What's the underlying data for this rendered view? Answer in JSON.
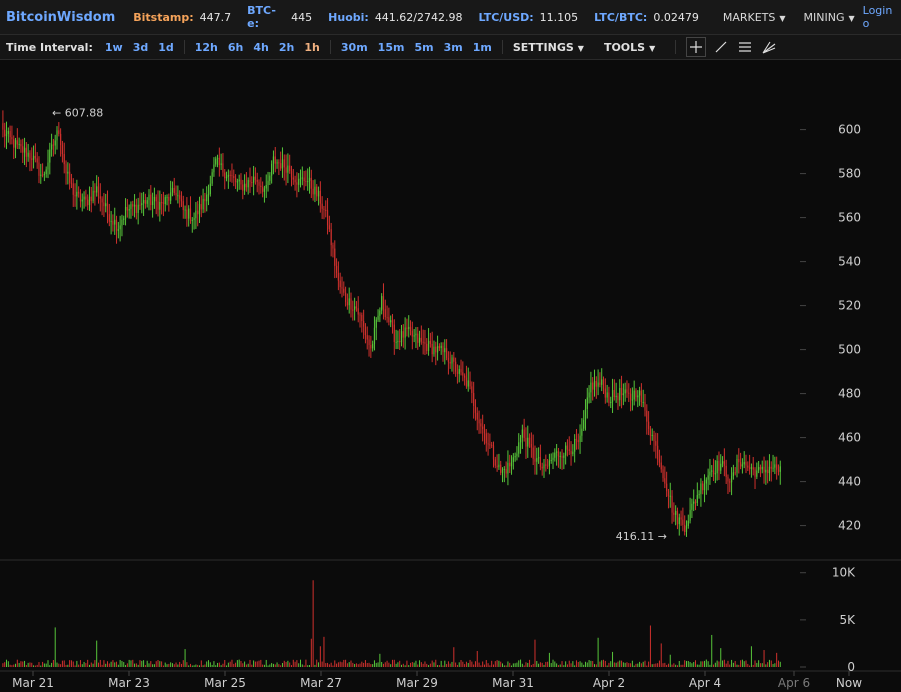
{
  "header": {
    "brand": "BitcoinWisdom",
    "tickers": [
      {
        "label": "Bitstamp:",
        "value": "447.7",
        "color": "#f5a35a"
      },
      {
        "label": "BTC-e:",
        "value": "445",
        "color": "#6ea8ff"
      },
      {
        "label": "Huobi:",
        "value": "441.62/2742.98",
        "color": "#6ea8ff"
      },
      {
        "label": "LTC/USD:",
        "value": "11.105",
        "color": "#6ea8ff"
      },
      {
        "label": "LTC/BTC:",
        "value": "0.02479",
        "color": "#6ea8ff"
      }
    ],
    "menus": [
      "MARKETS",
      "MINING"
    ],
    "login": "Login o"
  },
  "toolbar": {
    "time_interval_label": "Time Interval:",
    "interval_groups": [
      [
        "1w",
        "3d",
        "1d"
      ],
      [
        "12h",
        "6h",
        "4h",
        "2h",
        "1h"
      ],
      [
        "30m",
        "15m",
        "5m",
        "3m",
        "1m"
      ]
    ],
    "active_interval": "1h",
    "settings_label": "SETTINGS",
    "tools_label": "TOOLS",
    "tool_icons": [
      "crosshair-icon",
      "line-tool-icon",
      "horizontal-lines-icon",
      "fan-tool-icon"
    ]
  },
  "chart_data": {
    "type": "candlestick",
    "title": "",
    "up_color": "#57c53a",
    "down_color": "#d0312d",
    "price_axis": {
      "ticks": [
        420,
        440,
        460,
        480,
        500,
        520,
        540,
        560,
        580,
        600
      ],
      "range": [
        408,
        628
      ]
    },
    "volume_axis": {
      "tick_labels": [
        "10K",
        "5K",
        "0"
      ],
      "ticks": [
        10000,
        5000,
        0
      ],
      "range": [
        0,
        10500
      ]
    },
    "x_labels": [
      "Mar 21",
      "Mar 23",
      "Mar 25",
      "Mar 27",
      "Mar 29",
      "Mar 31",
      "Apr 2",
      "Apr 4",
      "Apr 6",
      "Now"
    ],
    "annotations": {
      "high": "← 607.88",
      "high_value": 607.88,
      "low": "416.11 →",
      "low_value": 416.11
    },
    "anchors": [
      [
        0,
        599
      ],
      [
        8,
        592
      ],
      [
        16,
        588
      ],
      [
        22,
        578
      ],
      [
        27,
        591
      ],
      [
        31,
        600
      ],
      [
        35,
        580
      ],
      [
        40,
        570
      ],
      [
        46,
        567
      ],
      [
        52,
        573
      ],
      [
        58,
        562
      ],
      [
        64,
        556
      ],
      [
        68,
        563
      ],
      [
        74,
        565
      ],
      [
        80,
        568
      ],
      [
        88,
        566
      ],
      [
        96,
        572
      ],
      [
        100,
        563
      ],
      [
        106,
        560
      ],
      [
        112,
        568
      ],
      [
        118,
        585
      ],
      [
        124,
        580
      ],
      [
        132,
        574
      ],
      [
        140,
        578
      ],
      [
        146,
        572
      ],
      [
        150,
        586
      ],
      [
        158,
        583
      ],
      [
        164,
        576
      ],
      [
        168,
        578
      ],
      [
        176,
        568
      ],
      [
        180,
        558
      ],
      [
        186,
        530
      ],
      [
        190,
        523
      ],
      [
        196,
        519
      ],
      [
        200,
        510
      ],
      [
        204,
        500
      ],
      [
        210,
        522
      ],
      [
        218,
        504
      ],
      [
        224,
        508
      ],
      [
        232,
        503
      ],
      [
        240,
        500
      ],
      [
        246,
        498
      ],
      [
        252,
        490
      ],
      [
        258,
        484
      ],
      [
        264,
        468
      ],
      [
        272,
        452
      ],
      [
        276,
        444
      ],
      [
        282,
        448
      ],
      [
        288,
        462
      ],
      [
        294,
        452
      ],
      [
        300,
        445
      ],
      [
        306,
        452
      ],
      [
        314,
        455
      ],
      [
        320,
        458
      ],
      [
        326,
        484
      ],
      [
        332,
        484
      ],
      [
        336,
        478
      ],
      [
        342,
        480
      ],
      [
        348,
        478
      ],
      [
        352,
        482
      ],
      [
        358,
        466
      ],
      [
        364,
        450
      ],
      [
        368,
        438
      ],
      [
        372,
        425
      ],
      [
        378,
        420
      ],
      [
        382,
        428
      ],
      [
        386,
        436
      ],
      [
        392,
        445
      ],
      [
        398,
        448
      ],
      [
        404,
        440
      ],
      [
        408,
        450
      ],
      [
        414,
        446
      ],
      [
        420,
        444
      ],
      [
        426,
        447
      ],
      [
        430,
        445
      ]
    ],
    "volume_spikes": [
      [
        29,
        4200
      ],
      [
        52,
        2800
      ],
      [
        101,
        1900
      ],
      [
        171,
        3000
      ],
      [
        172,
        9200
      ],
      [
        176,
        2200
      ],
      [
        178,
        3200
      ],
      [
        209,
        1400
      ],
      [
        250,
        2100
      ],
      [
        263,
        1700
      ],
      [
        295,
        2900
      ],
      [
        303,
        1500
      ],
      [
        330,
        3100
      ],
      [
        338,
        1600
      ],
      [
        359,
        4400
      ],
      [
        365,
        2500
      ],
      [
        370,
        1300
      ],
      [
        393,
        3400
      ],
      [
        398,
        2000
      ],
      [
        415,
        2200
      ],
      [
        422,
        1800
      ],
      [
        429,
        1500
      ]
    ]
  }
}
